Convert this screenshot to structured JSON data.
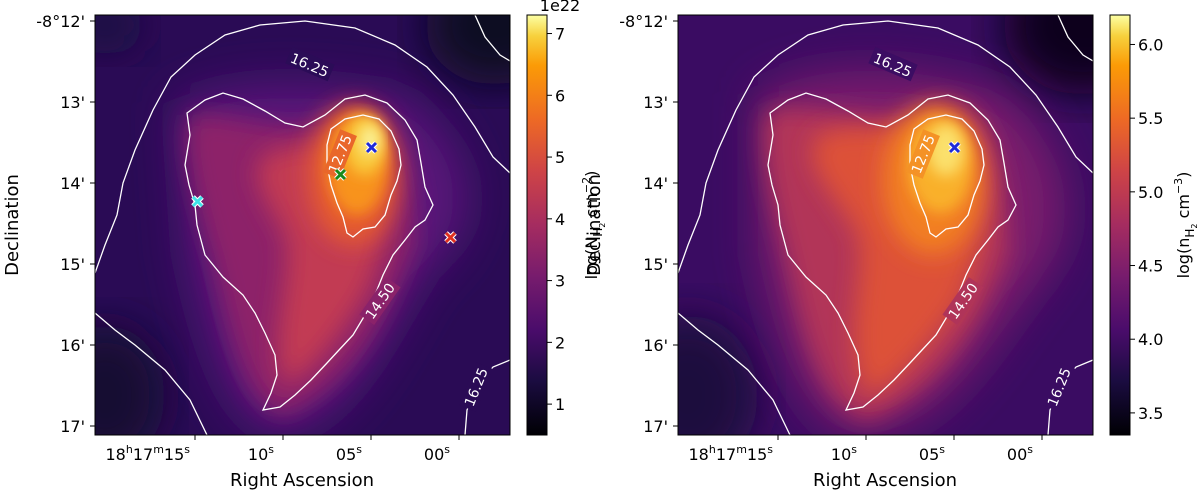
{
  "chart_data": [
    {
      "type": "heatmap",
      "name": "column-density-map",
      "xlabel": "Right Ascension",
      "ylabel": "Declination",
      "x_ticks": [
        {
          "h": "18",
          "m": "17",
          "s": "15"
        },
        {
          "s": "10"
        },
        {
          "s": "05"
        },
        {
          "s": "00"
        }
      ],
      "y_ticks": [
        "-8°12'",
        "13'",
        "14'",
        "15'",
        "16'",
        "17'"
      ],
      "colorbar": {
        "label_main": "log(N",
        "label_sub": "H",
        "label_subsub": "2",
        "label_tail": " cm",
        "label_sup": "−2",
        "label_close": ")",
        "offset": "1e22",
        "ticks": [
          "1",
          "2",
          "3",
          "4",
          "5",
          "6",
          "7"
        ],
        "range": [
          0.5,
          7.3
        ]
      },
      "contour_labels": [
        "16.25",
        "14.50",
        "12.75",
        "16.25"
      ],
      "markers": [
        {
          "name": "blue-marker",
          "color": "#1f2bd8"
        },
        {
          "name": "green-marker",
          "color": "#1a8a1a"
        },
        {
          "name": "cyan-marker",
          "color": "#3fe3e8"
        },
        {
          "name": "red-marker",
          "color": "#e0301e"
        }
      ]
    },
    {
      "type": "heatmap",
      "name": "volume-density-map",
      "xlabel": "Right Ascension",
      "ylabel": "Declination",
      "x_ticks": [
        {
          "h": "18",
          "m": "17",
          "s": "15"
        },
        {
          "s": "10"
        },
        {
          "s": "05"
        },
        {
          "s": "00"
        }
      ],
      "y_ticks": [
        "-8°12'",
        "13'",
        "14'",
        "15'",
        "16'",
        "17'"
      ],
      "colorbar": {
        "label_main": "log(n",
        "label_sub": "H",
        "label_subsub": "2",
        "label_tail": " cm",
        "label_sup": "−3",
        "label_close": ")",
        "offset": "",
        "ticks": [
          "3.5",
          "4.0",
          "4.5",
          "5.0",
          "5.5",
          "6.0"
        ],
        "range": [
          3.35,
          6.2
        ]
      },
      "contour_labels": [
        "16.25",
        "14.50",
        "12.75",
        "16.25"
      ],
      "markers": [
        {
          "name": "blue-marker",
          "color": "#1f2bd8"
        }
      ]
    }
  ]
}
